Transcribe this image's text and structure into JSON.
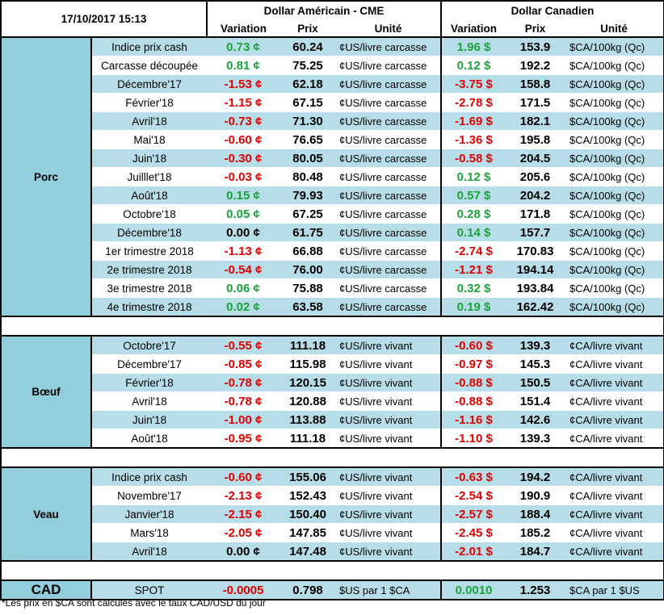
{
  "header": {
    "datetime": "17/10/2017 15:13",
    "usd_group": "Dollar Américain - CME",
    "cad_group": "Dollar Canadien",
    "col_variation": "Variation",
    "col_prix": "Prix",
    "col_unite": "Unité"
  },
  "sections": [
    {
      "name": "Porc",
      "rows": [
        {
          "label": "Indice prix cash",
          "usd_var": "0.73 ¢",
          "usd_dir": "pos",
          "usd_price": "60.24",
          "usd_unit": "¢US/livre carcasse",
          "cad_var": "1.96 $",
          "cad_dir": "pos",
          "cad_price": "153.9",
          "cad_unit": "$CA/100kg (Qc)"
        },
        {
          "label": "Carcasse découpée",
          "usd_var": "0.81 ¢",
          "usd_dir": "pos",
          "usd_price": "75.25",
          "usd_unit": "¢US/livre carcasse",
          "cad_var": "0.12 $",
          "cad_dir": "pos",
          "cad_price": "192.2",
          "cad_unit": "$CA/100kg (Qc)"
        },
        {
          "label": "Décembre'17",
          "usd_var": "-1.53 ¢",
          "usd_dir": "neg",
          "usd_price": "62.18",
          "usd_unit": "¢US/livre carcasse",
          "cad_var": "-3.75 $",
          "cad_dir": "neg",
          "cad_price": "158.8",
          "cad_unit": "$CA/100kg (Qc)"
        },
        {
          "label": "Février'18",
          "usd_var": "-1.15 ¢",
          "usd_dir": "neg",
          "usd_price": "67.15",
          "usd_unit": "¢US/livre carcasse",
          "cad_var": "-2.78 $",
          "cad_dir": "neg",
          "cad_price": "171.5",
          "cad_unit": "$CA/100kg (Qc)"
        },
        {
          "label": "Avril'18",
          "usd_var": "-0.73 ¢",
          "usd_dir": "neg",
          "usd_price": "71.30",
          "usd_unit": "¢US/livre carcasse",
          "cad_var": "-1.69 $",
          "cad_dir": "neg",
          "cad_price": "182.1",
          "cad_unit": "$CA/100kg (Qc)"
        },
        {
          "label": "Mai'18",
          "usd_var": "-0.60 ¢",
          "usd_dir": "neg",
          "usd_price": "76.65",
          "usd_unit": "¢US/livre carcasse",
          "cad_var": "-1.36 $",
          "cad_dir": "neg",
          "cad_price": "195.8",
          "cad_unit": "$CA/100kg (Qc)"
        },
        {
          "label": "Juin'18",
          "usd_var": "-0.30 ¢",
          "usd_dir": "neg",
          "usd_price": "80.05",
          "usd_unit": "¢US/livre carcasse",
          "cad_var": "-0.58 $",
          "cad_dir": "neg",
          "cad_price": "204.5",
          "cad_unit": "$CA/100kg (Qc)"
        },
        {
          "label": "Juilllet'18",
          "usd_var": "-0.03 ¢",
          "usd_dir": "neg",
          "usd_price": "80.48",
          "usd_unit": "¢US/livre carcasse",
          "cad_var": "0.12 $",
          "cad_dir": "pos",
          "cad_price": "205.6",
          "cad_unit": "$CA/100kg (Qc)"
        },
        {
          "label": "Août'18",
          "usd_var": "0.15 ¢",
          "usd_dir": "pos",
          "usd_price": "79.93",
          "usd_unit": "¢US/livre carcasse",
          "cad_var": "0.57 $",
          "cad_dir": "pos",
          "cad_price": "204.2",
          "cad_unit": "$CA/100kg (Qc)"
        },
        {
          "label": "Octobre'18",
          "usd_var": "0.05 ¢",
          "usd_dir": "pos",
          "usd_price": "67.25",
          "usd_unit": "¢US/livre carcasse",
          "cad_var": "0.28 $",
          "cad_dir": "pos",
          "cad_price": "171.8",
          "cad_unit": "$CA/100kg (Qc)"
        },
        {
          "label": "Décembre'18",
          "usd_var": "0.00 ¢",
          "usd_dir": "zero",
          "usd_price": "61.75",
          "usd_unit": "¢US/livre carcasse",
          "cad_var": "0.14 $",
          "cad_dir": "pos",
          "cad_price": "157.7",
          "cad_unit": "$CA/100kg (Qc)"
        },
        {
          "label": "1er trimestre 2018",
          "usd_var": "-1.13 ¢",
          "usd_dir": "neg",
          "usd_price": "66.88",
          "usd_unit": "¢US/livre carcasse",
          "cad_var": "-2.74 $",
          "cad_dir": "neg",
          "cad_price": "170.83",
          "cad_unit": "$CA/100kg (Qc)"
        },
        {
          "label": "2e trimestre 2018",
          "usd_var": "-0.54 ¢",
          "usd_dir": "neg",
          "usd_price": "76.00",
          "usd_unit": "¢US/livre carcasse",
          "cad_var": "-1.21 $",
          "cad_dir": "neg",
          "cad_price": "194.14",
          "cad_unit": "$CA/100kg (Qc)"
        },
        {
          "label": "3e trimestre 2018",
          "usd_var": "0.06 ¢",
          "usd_dir": "pos",
          "usd_price": "75.88",
          "usd_unit": "¢US/livre carcasse",
          "cad_var": "0.32 $",
          "cad_dir": "pos",
          "cad_price": "193.84",
          "cad_unit": "$CA/100kg (Qc)"
        },
        {
          "label": "4e trimestre 2018",
          "usd_var": "0.02 ¢",
          "usd_dir": "pos",
          "usd_price": "63.58",
          "usd_unit": "¢US/livre carcasse",
          "cad_var": "0.19 $",
          "cad_dir": "pos",
          "cad_price": "162.42",
          "cad_unit": "$CA/100kg (Qc)"
        }
      ]
    },
    {
      "name": "Bœuf",
      "rows": [
        {
          "label": "Octobre'17",
          "usd_var": "-0.55 ¢",
          "usd_dir": "neg",
          "usd_price": "111.18",
          "usd_unit": "¢US/livre vivant",
          "cad_var": "-0.60 $",
          "cad_dir": "neg",
          "cad_price": "139.3",
          "cad_unit": "¢CA/livre vivant"
        },
        {
          "label": "Décembre'17",
          "usd_var": "-0.85 ¢",
          "usd_dir": "neg",
          "usd_price": "115.98",
          "usd_unit": "¢US/livre vivant",
          "cad_var": "-0.97 $",
          "cad_dir": "neg",
          "cad_price": "145.3",
          "cad_unit": "¢CA/livre vivant"
        },
        {
          "label": "Février'18",
          "usd_var": "-0.78 ¢",
          "usd_dir": "neg",
          "usd_price": "120.15",
          "usd_unit": "¢US/livre vivant",
          "cad_var": "-0.88 $",
          "cad_dir": "neg",
          "cad_price": "150.5",
          "cad_unit": "¢CA/livre vivant"
        },
        {
          "label": "Avril'18",
          "usd_var": "-0.78 ¢",
          "usd_dir": "neg",
          "usd_price": "120.88",
          "usd_unit": "¢US/livre vivant",
          "cad_var": "-0.88 $",
          "cad_dir": "neg",
          "cad_price": "151.4",
          "cad_unit": "¢CA/livre vivant"
        },
        {
          "label": "Juin'18",
          "usd_var": "-1.00 ¢",
          "usd_dir": "neg",
          "usd_price": "113.88",
          "usd_unit": "¢US/livre vivant",
          "cad_var": "-1.16 $",
          "cad_dir": "neg",
          "cad_price": "142.6",
          "cad_unit": "¢CA/livre vivant"
        },
        {
          "label": "Août'18",
          "usd_var": "-0.95 ¢",
          "usd_dir": "neg",
          "usd_price": "111.18",
          "usd_unit": "¢US/livre vivant",
          "cad_var": "-1.10 $",
          "cad_dir": "neg",
          "cad_price": "139.3",
          "cad_unit": "¢CA/livre vivant"
        }
      ]
    },
    {
      "name": "Veau",
      "rows": [
        {
          "label": "Indice prix cash",
          "usd_var": "-0.60 ¢",
          "usd_dir": "neg",
          "usd_price": "155.06",
          "usd_unit": "¢US/livre vivant",
          "cad_var": "-0.63 $",
          "cad_dir": "neg",
          "cad_price": "194.2",
          "cad_unit": "¢CA/livre vivant"
        },
        {
          "label": "Novembre'17",
          "usd_var": "-2.13 ¢",
          "usd_dir": "neg",
          "usd_price": "152.43",
          "usd_unit": "¢US/livre vivant",
          "cad_var": "-2.54 $",
          "cad_dir": "neg",
          "cad_price": "190.9",
          "cad_unit": "¢CA/livre vivant"
        },
        {
          "label": "Janvier'18",
          "usd_var": "-2.15 ¢",
          "usd_dir": "neg",
          "usd_price": "150.40",
          "usd_unit": "¢US/livre vivant",
          "cad_var": "-2.57 $",
          "cad_dir": "neg",
          "cad_price": "188.4",
          "cad_unit": "¢CA/livre vivant"
        },
        {
          "label": "Mars'18",
          "usd_var": "-2.05 ¢",
          "usd_dir": "neg",
          "usd_price": "147.85",
          "usd_unit": "¢US/livre vivant",
          "cad_var": "-2.45 $",
          "cad_dir": "neg",
          "cad_price": "185.2",
          "cad_unit": "¢CA/livre vivant"
        },
        {
          "label": "Avril'18",
          "usd_var": "0.00 ¢",
          "usd_dir": "zero",
          "usd_price": "147.48",
          "usd_unit": "¢US/livre vivant",
          "cad_var": "-2.01 $",
          "cad_dir": "neg",
          "cad_price": "184.7",
          "cad_unit": "¢CA/livre vivant"
        }
      ]
    }
  ],
  "cad": {
    "name": "CAD",
    "label": "SPOT",
    "usd_var": "-0.0005",
    "usd_dir": "neg",
    "usd_price": "0.798",
    "usd_unit": "$US par 1 $CA",
    "cad_var": "0.0010",
    "cad_dir": "pos",
    "cad_price": "1.253",
    "cad_unit": "$CA par 1 $US"
  },
  "footnote": "*Les  prix en $CA sont calculés avec le taux CAD/USD du jour",
  "colors": {
    "section_name_bg": "#92cddc",
    "row_shade": "#b7dee8",
    "negative": "#e00000",
    "positive": "#1aa33a"
  }
}
